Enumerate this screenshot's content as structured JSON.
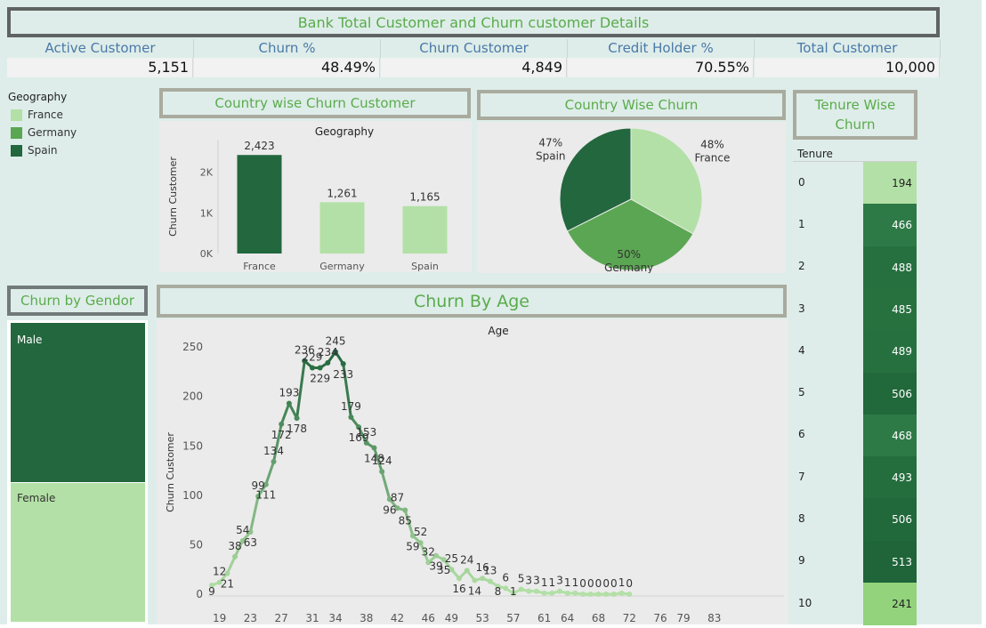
{
  "dashboard": {
    "title": "Bank Total Customer and Churn customer Details",
    "kpis": [
      {
        "label": "Active Customer",
        "value": "5,151"
      },
      {
        "label": "Churn %",
        "value": "48.49%"
      },
      {
        "label": "Churn Customer",
        "value": "4,849"
      },
      {
        "label": "Credit Holder %",
        "value": "70.55%"
      },
      {
        "label": "Total Customer",
        "value": "10,000"
      }
    ],
    "legend": {
      "title": "Geography",
      "items": [
        {
          "label": "France",
          "color": "#b3e0a6"
        },
        {
          "label": "Germany",
          "color": "#5ba653"
        },
        {
          "label": "Spain",
          "color": "#23673e"
        }
      ]
    },
    "panels": {
      "country_bar_title": "Country wise Churn Customer",
      "country_pie_title": "Country Wise Churn",
      "tenure_title": "Tenure Wise Churn",
      "gender_title": "Churn by Gendor",
      "age_title": "Churn By Age"
    }
  },
  "chart_data": [
    {
      "type": "bar",
      "title": "Geography",
      "ylabel": "Churn Customer",
      "categories": [
        "France",
        "Germany",
        "Spain"
      ],
      "values": [
        2423,
        1261,
        1165
      ],
      "value_labels": [
        "2,423",
        "1,261",
        "1,165"
      ],
      "colors": [
        "#23673e",
        "#b3e0a6",
        "#b3e0a6"
      ],
      "yticks": [
        0,
        1000,
        2000
      ],
      "ytick_labels": [
        "0K",
        "1K",
        "2K"
      ],
      "ylim": [
        0,
        2800
      ]
    },
    {
      "type": "pie",
      "slices": [
        {
          "name": "France",
          "percent": 48,
          "label": "48%",
          "color": "#b3e0a6"
        },
        {
          "name": "Germany",
          "percent": 50,
          "label": "50%",
          "color": "#5ba653"
        },
        {
          "name": "Spain",
          "percent": 47,
          "label": "47%",
          "color": "#23673e"
        }
      ]
    },
    {
      "type": "table",
      "header": "Tenure",
      "rows": [
        {
          "tenure": "0",
          "value": "194",
          "color": "#b3e0a6"
        },
        {
          "tenure": "1",
          "value": "466",
          "color": "#2d7a46"
        },
        {
          "tenure": "2",
          "value": "488",
          "color": "#26703f"
        },
        {
          "tenure": "3",
          "value": "485",
          "color": "#27713f"
        },
        {
          "tenure": "4",
          "value": "489",
          "color": "#26703f"
        },
        {
          "tenure": "5",
          "value": "506",
          "color": "#21683b"
        },
        {
          "tenure": "6",
          "value": "468",
          "color": "#2d7a46"
        },
        {
          "tenure": "7",
          "value": "493",
          "color": "#246d3d"
        },
        {
          "tenure": "8",
          "value": "506",
          "color": "#21683b"
        },
        {
          "tenure": "9",
          "value": "513",
          "color": "#1f6539"
        },
        {
          "tenure": "10",
          "value": "241",
          "color": "#92d37c"
        }
      ]
    },
    {
      "type": "area",
      "categories": [
        "Male",
        "Female"
      ],
      "colors": [
        "#23673e",
        "#b3e0a6"
      ],
      "shares": [
        0.545,
        0.455
      ]
    },
    {
      "type": "line",
      "title": "Age",
      "ylabel": "Churn Customer",
      "xlim": [
        18,
        92
      ],
      "ylim": [
        0,
        260
      ],
      "yticks": [
        0,
        50,
        100,
        150,
        200,
        250
      ],
      "xticks": [
        19,
        23,
        27,
        31,
        34,
        38,
        42,
        46,
        49,
        53,
        57,
        61,
        64,
        68,
        72,
        76,
        79,
        83
      ],
      "series": [
        {
          "points": [
            [
              18,
              9
            ],
            [
              19,
              12
            ],
            [
              20,
              21
            ],
            [
              21,
              38
            ],
            [
              22,
              54
            ],
            [
              23,
              63
            ],
            [
              24,
              99
            ],
            [
              25,
              111
            ],
            [
              26,
              134
            ],
            [
              27,
              172
            ],
            [
              28,
              193
            ],
            [
              29,
              178
            ],
            [
              30,
              236
            ],
            [
              31,
              229
            ],
            [
              32,
              229
            ],
            [
              33,
              234
            ],
            [
              34,
              245
            ],
            [
              35,
              233
            ],
            [
              36,
              179
            ],
            [
              37,
              169
            ],
            [
              38,
              153
            ],
            [
              39,
              148
            ],
            [
              40,
              124
            ],
            [
              41,
              96
            ],
            [
              42,
              87
            ],
            [
              43,
              85
            ],
            [
              44,
              59
            ],
            [
              45,
              52
            ],
            [
              46,
              32
            ],
            [
              47,
              39
            ],
            [
              48,
              35
            ],
            [
              49,
              25
            ],
            [
              50,
              16
            ],
            [
              51,
              24
            ],
            [
              52,
              14
            ],
            [
              53,
              16
            ],
            [
              54,
              13
            ],
            [
              55,
              8
            ],
            [
              56,
              6
            ],
            [
              57,
              1
            ],
            [
              58,
              5
            ],
            [
              59,
              3
            ],
            [
              60,
              3
            ],
            [
              61,
              1
            ],
            [
              62,
              1
            ],
            [
              63,
              3
            ],
            [
              64,
              1
            ],
            [
              65,
              1
            ],
            [
              66,
              0
            ],
            [
              67,
              0
            ],
            [
              68,
              0
            ],
            [
              69,
              0
            ],
            [
              70,
              0
            ],
            [
              71,
              1
            ],
            [
              72,
              0
            ]
          ]
        }
      ]
    }
  ]
}
